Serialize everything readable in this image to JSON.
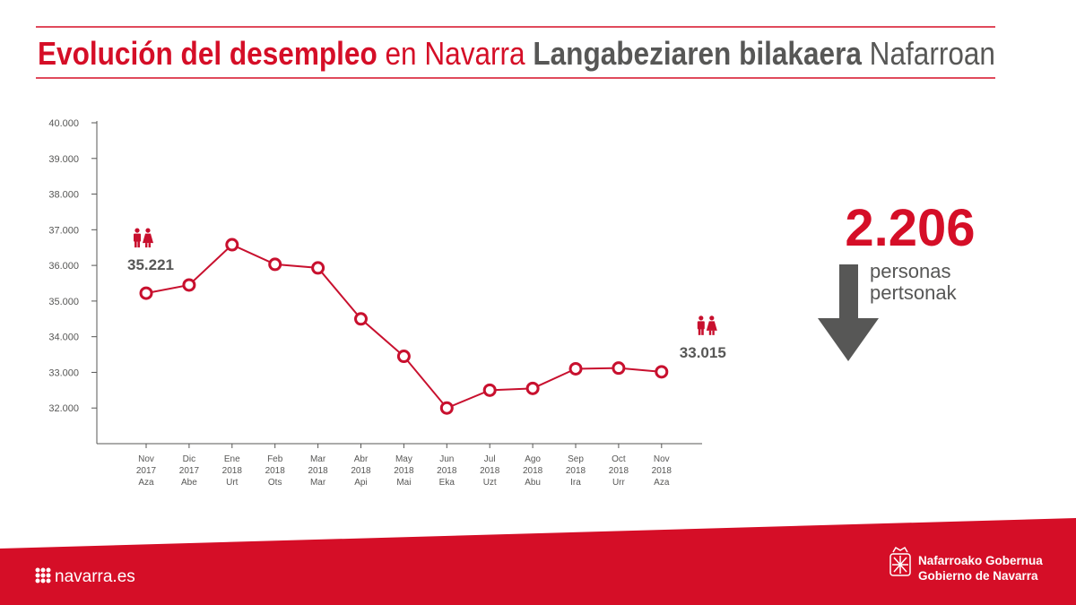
{
  "chart_data": {
    "type": "line",
    "title": [
      {
        "text": "Evolución del desempleo",
        "color": "#d50e27",
        "bold": true
      },
      {
        "text": "en Navarra",
        "color": "#d50e27",
        "bold": false
      },
      {
        "text": "Langabeziaren bilakaera",
        "color": "#575756",
        "bold": true
      },
      {
        "text": "Nafarroan",
        "color": "#575756",
        "bold": false
      }
    ],
    "categories": [
      [
        "Nov",
        "2017",
        "Aza"
      ],
      [
        "Dic",
        "2017",
        "Abe"
      ],
      [
        "Ene",
        "2018",
        "Urt"
      ],
      [
        "Feb",
        "2018",
        "Ots"
      ],
      [
        "Mar",
        "2018",
        "Mar"
      ],
      [
        "Abr",
        "2018",
        "Api"
      ],
      [
        "May",
        "2018",
        "Mai"
      ],
      [
        "Jun",
        "2018",
        "Eka"
      ],
      [
        "Jul",
        "2018",
        "Uzt"
      ],
      [
        "Ago",
        "2018",
        "Abu"
      ],
      [
        "Sep",
        "2018",
        "Ira"
      ],
      [
        "Oct",
        "2018",
        "Urr"
      ],
      [
        "Nov",
        "2018",
        "Aza"
      ]
    ],
    "values": [
      35221,
      35450,
      36580,
      36030,
      35930,
      34500,
      33450,
      32000,
      32500,
      32550,
      33100,
      33120,
      33015
    ],
    "value_labels": [
      "35.221",
      null,
      null,
      null,
      null,
      null,
      null,
      null,
      null,
      null,
      null,
      null,
      "33.015"
    ],
    "color": "#c8102e",
    "ylim": [
      31000,
      40000
    ],
    "yticks": [
      {
        "value": 32000,
        "label": "32.000"
      },
      {
        "value": 33000,
        "label": "33.000"
      },
      {
        "value": 34000,
        "label": "34.000"
      },
      {
        "value": 35000,
        "label": "35.000"
      },
      {
        "value": 36000,
        "label": "36.000"
      },
      {
        "value": 37000,
        "label": "37.000"
      },
      {
        "value": 38000,
        "label": "38.000"
      },
      {
        "value": 39000,
        "label": "39.000"
      },
      {
        "value": 40000,
        "label": "40.000"
      }
    ],
    "decrease": {
      "value": 2206,
      "label": "2.206"
    },
    "decrease_unit": [
      "personas",
      "pertsonak"
    ]
  },
  "footer": {
    "site": "navarra.es",
    "government": [
      "Nafarroako Gobernua",
      "Gobierno de Navarra"
    ]
  }
}
